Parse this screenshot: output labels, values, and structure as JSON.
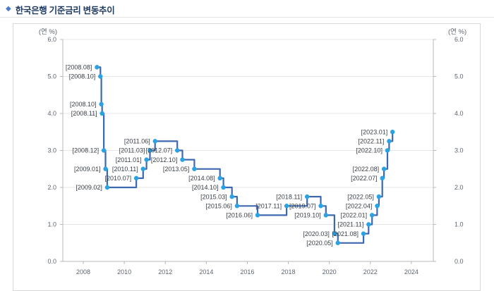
{
  "page": {
    "bullet": "◆",
    "title": "한국은행 기준금리 변동추이"
  },
  "chart_data": {
    "type": "line",
    "step": true,
    "title": "한국은행 기준금리 변동추이",
    "unit_label_left": "(연 %)",
    "unit_label_right": "(연 %)",
    "ylim": [
      0.0,
      6.0
    ],
    "y_tick_labels": [
      "0.0",
      "1.0",
      "2.0",
      "3.0",
      "4.0",
      "5.0",
      "6.0"
    ],
    "x_tick_labels": [
      "2008",
      "2010",
      "2012",
      "2014",
      "2016",
      "2018",
      "2020",
      "2022",
      "2024"
    ],
    "x_range_years": [
      2007,
      2025
    ],
    "grid": "horizontal",
    "legend": "none",
    "series": [
      {
        "name": "기준금리",
        "points": [
          {
            "date": "2008.08",
            "value": 5.25
          },
          {
            "date": "2008.10",
            "value": 5.0
          },
          {
            "date": "2008.10",
            "value": 4.25
          },
          {
            "date": "2008.11",
            "value": 4.0
          },
          {
            "date": "2008.12",
            "value": 3.0
          },
          {
            "date": "2009.01",
            "value": 2.5
          },
          {
            "date": "2009.02",
            "value": 2.0
          },
          {
            "date": "2010.07",
            "value": 2.25
          },
          {
            "date": "2010.11",
            "value": 2.5
          },
          {
            "date": "2011.01",
            "value": 2.75
          },
          {
            "date": "2011.03",
            "value": 3.0
          },
          {
            "date": "2011.06",
            "value": 3.25
          },
          {
            "date": "2012.07",
            "value": 3.0
          },
          {
            "date": "2012.10",
            "value": 2.75
          },
          {
            "date": "2013.05",
            "value": 2.5
          },
          {
            "date": "2014.08",
            "value": 2.25
          },
          {
            "date": "2014.10",
            "value": 2.0
          },
          {
            "date": "2015.03",
            "value": 1.75
          },
          {
            "date": "2015.06",
            "value": 1.5
          },
          {
            "date": "2016.06",
            "value": 1.25
          },
          {
            "date": "2017.11",
            "value": 1.5
          },
          {
            "date": "2018.11",
            "value": 1.75
          },
          {
            "date": "2019.07",
            "value": 1.5
          },
          {
            "date": "2019.10",
            "value": 1.25
          },
          {
            "date": "2020.03",
            "value": 0.75
          },
          {
            "date": "2020.05",
            "value": 0.5
          },
          {
            "date": "2021.08",
            "value": 0.75
          },
          {
            "date": "2021.11",
            "value": 1.0
          },
          {
            "date": "2022.01",
            "value": 1.25
          },
          {
            "date": "2022.04",
            "value": 1.5
          },
          {
            "date": "2022.05",
            "value": 1.75
          },
          {
            "date": "2022.07",
            "value": 2.25
          },
          {
            "date": "2022.08",
            "value": 2.5
          },
          {
            "date": "2022.10",
            "value": 3.0
          },
          {
            "date": "2022.11",
            "value": 3.25
          },
          {
            "date": "2023.01",
            "value": 3.5
          }
        ]
      }
    ],
    "colors": {
      "line": "#3e68b0",
      "marker": "#2aa3e3",
      "grid": "#e7e7e7",
      "axis": "#b8b8b8",
      "tick_label": "#5c6570",
      "point_label": "#3a4148",
      "unit_label": "#5c6570"
    }
  }
}
